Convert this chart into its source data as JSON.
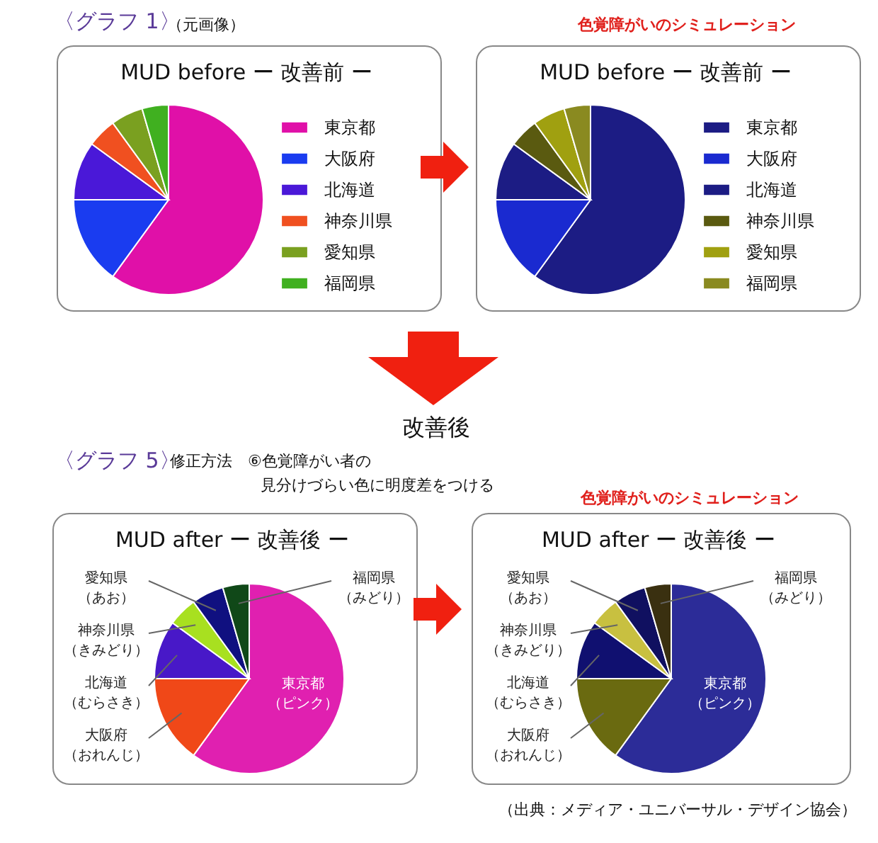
{
  "chart_data": [
    {
      "type": "pie",
      "title": "MUD before ー 改善前 ー",
      "categories": [
        "東京都",
        "大阪府",
        "北海道",
        "神奈川県",
        "愛知県",
        "福岡県"
      ],
      "values": [
        60,
        15,
        10,
        5,
        5.5,
        4.5
      ],
      "colors": [
        "#e010a8",
        "#1a3cf0",
        "#4a18d8",
        "#f05020",
        "#7aa020",
        "#40b020"
      ],
      "legend": "right",
      "annotations": [
        "〈グラフ 1〉",
        "（元画像）"
      ]
    },
    {
      "type": "pie",
      "title": "MUD before ー 改善前 ー",
      "categories": [
        "東京都",
        "大阪府",
        "北海道",
        "神奈川県",
        "愛知県",
        "福岡県"
      ],
      "values": [
        60,
        15,
        10,
        5,
        5.5,
        4.5
      ],
      "colors": [
        "#1c1c84",
        "#1a2ad0",
        "#1c1c84",
        "#5a5a10",
        "#a0a010",
        "#8a8a20"
      ],
      "legend": "right",
      "annotations": [
        "色覚障がいのシミュレーション"
      ]
    },
    {
      "type": "pie",
      "title": "MUD after ー 改善後 ー",
      "categories": [
        "東京都（ピンク）",
        "大阪府（おれんじ）",
        "北海道（むらさき）",
        "神奈川県（きみどり）",
        "愛知県（あお）",
        "福岡県（みどり）"
      ],
      "values": [
        60,
        15,
        10,
        5,
        5.5,
        4.5
      ],
      "colors": [
        "#e020b0",
        "#f04818",
        "#4818c8",
        "#a8e020",
        "#101080",
        "#104818"
      ],
      "annotations": [
        "改善後",
        "〈グラフ 5〉",
        "修正方法　⑥色覚障がい者の",
        "見分けづらい色に明度差をつける"
      ]
    },
    {
      "type": "pie",
      "title": "MUD after ー 改善後 ー",
      "categories": [
        "東京都（ピンク）",
        "大阪府（おれんじ）",
        "北海道（むらさき）",
        "神奈川県（きみどり）",
        "愛知県（あお）",
        "福岡県（みどり）"
      ],
      "values": [
        60,
        15,
        10,
        5,
        5.5,
        4.5
      ],
      "colors": [
        "#2c2c98",
        "#6a6a10",
        "#101070",
        "#c8c040",
        "#101060",
        "#3a3010"
      ],
      "annotations": [
        "色覚障がいのシミュレーション",
        "（出典：メディア・ユニバーサル・デザイン協会）"
      ]
    }
  ]
}
